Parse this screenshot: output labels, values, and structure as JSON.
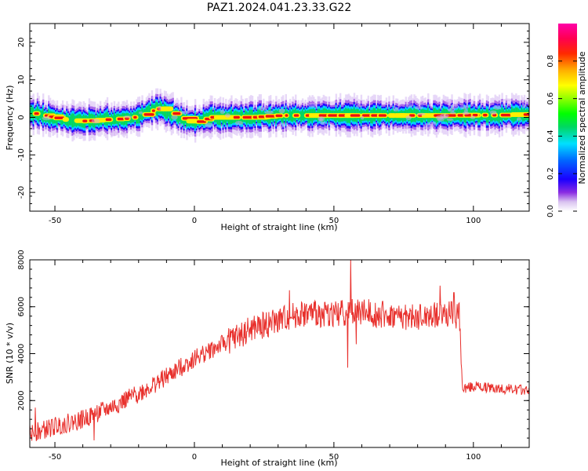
{
  "title": "PAZ1.2024.041.23.33.G22",
  "chart_data": [
    {
      "type": "heatmap",
      "xlabel": "Height of straight line (km)",
      "ylabel": "Frequency (Hz)",
      "xlim": [
        -59,
        120
      ],
      "ylim": [
        -25,
        25
      ],
      "xticks": [
        -50,
        0,
        50,
        100
      ],
      "yticks": [
        -20,
        -10,
        0,
        10,
        20
      ],
      "colorbar": {
        "label": "Normalized spectral amplitude",
        "range": [
          0,
          1
        ],
        "ticks": [
          0.0,
          0.2,
          0.4,
          0.6,
          0.8
        ],
        "colormap": "gist_ncar-like (white-purple-blue-cyan-green-yellow-red-magenta)"
      },
      "ridge": {
        "x": [
          -57,
          -52,
          -45,
          -40,
          -35,
          -30,
          -25,
          -20,
          -16,
          -13,
          -10,
          -6,
          -3,
          0,
          5,
          10,
          20,
          25,
          30,
          40,
          50,
          60,
          70,
          80,
          90,
          100,
          110,
          115,
          120
        ],
        "y": [
          1.0,
          0.0,
          -0.8,
          -1.0,
          -0.7,
          -0.5,
          -0.3,
          0.3,
          1.7,
          2.5,
          1.6,
          0.2,
          -1.0,
          -1.2,
          0.0,
          0.0,
          0.0,
          0.3,
          0.5,
          0.5,
          0.5,
          0.5,
          0.5,
          0.5,
          0.5,
          0.6,
          0.6,
          0.8,
          0.7
        ]
      }
    },
    {
      "type": "line",
      "xlabel": "Height of straight line (km)",
      "ylabel": "SNR (10 * v/v)",
      "xlim": [
        -59,
        120
      ],
      "ylim": [
        0,
        8000
      ],
      "xticks": [
        -50,
        0,
        50,
        100
      ],
      "yticks": [
        2000,
        4000,
        6000,
        8000
      ],
      "color": "#e8302c",
      "trend": {
        "x": [
          -59,
          -55,
          -50,
          -40,
          -30,
          -20,
          -10,
          0,
          10,
          20,
          30,
          35,
          40,
          50,
          55,
          60,
          70,
          80,
          90,
          95,
          96,
          97,
          100,
          110,
          120
        ],
        "y": [
          600,
          700,
          900,
          1200,
          1700,
          2300,
          3000,
          3800,
          4400,
          5000,
          5400,
          5600,
          5700,
          5700,
          5800,
          5800,
          5600,
          5500,
          5700,
          5600,
          2600,
          2550,
          2600,
          2500,
          2450
        ]
      },
      "spikes": [
        {
          "x": -57,
          "y": 1700
        },
        {
          "x": -36,
          "y": 300
        },
        {
          "x": 34,
          "y": 6700
        },
        {
          "x": 55,
          "y": 3400
        },
        {
          "x": 56,
          "y": 8000
        },
        {
          "x": 58,
          "y": 4400
        },
        {
          "x": 88,
          "y": 6900
        },
        {
          "x": 93,
          "y": 6600
        }
      ],
      "noise_amplitude": 450
    }
  ]
}
